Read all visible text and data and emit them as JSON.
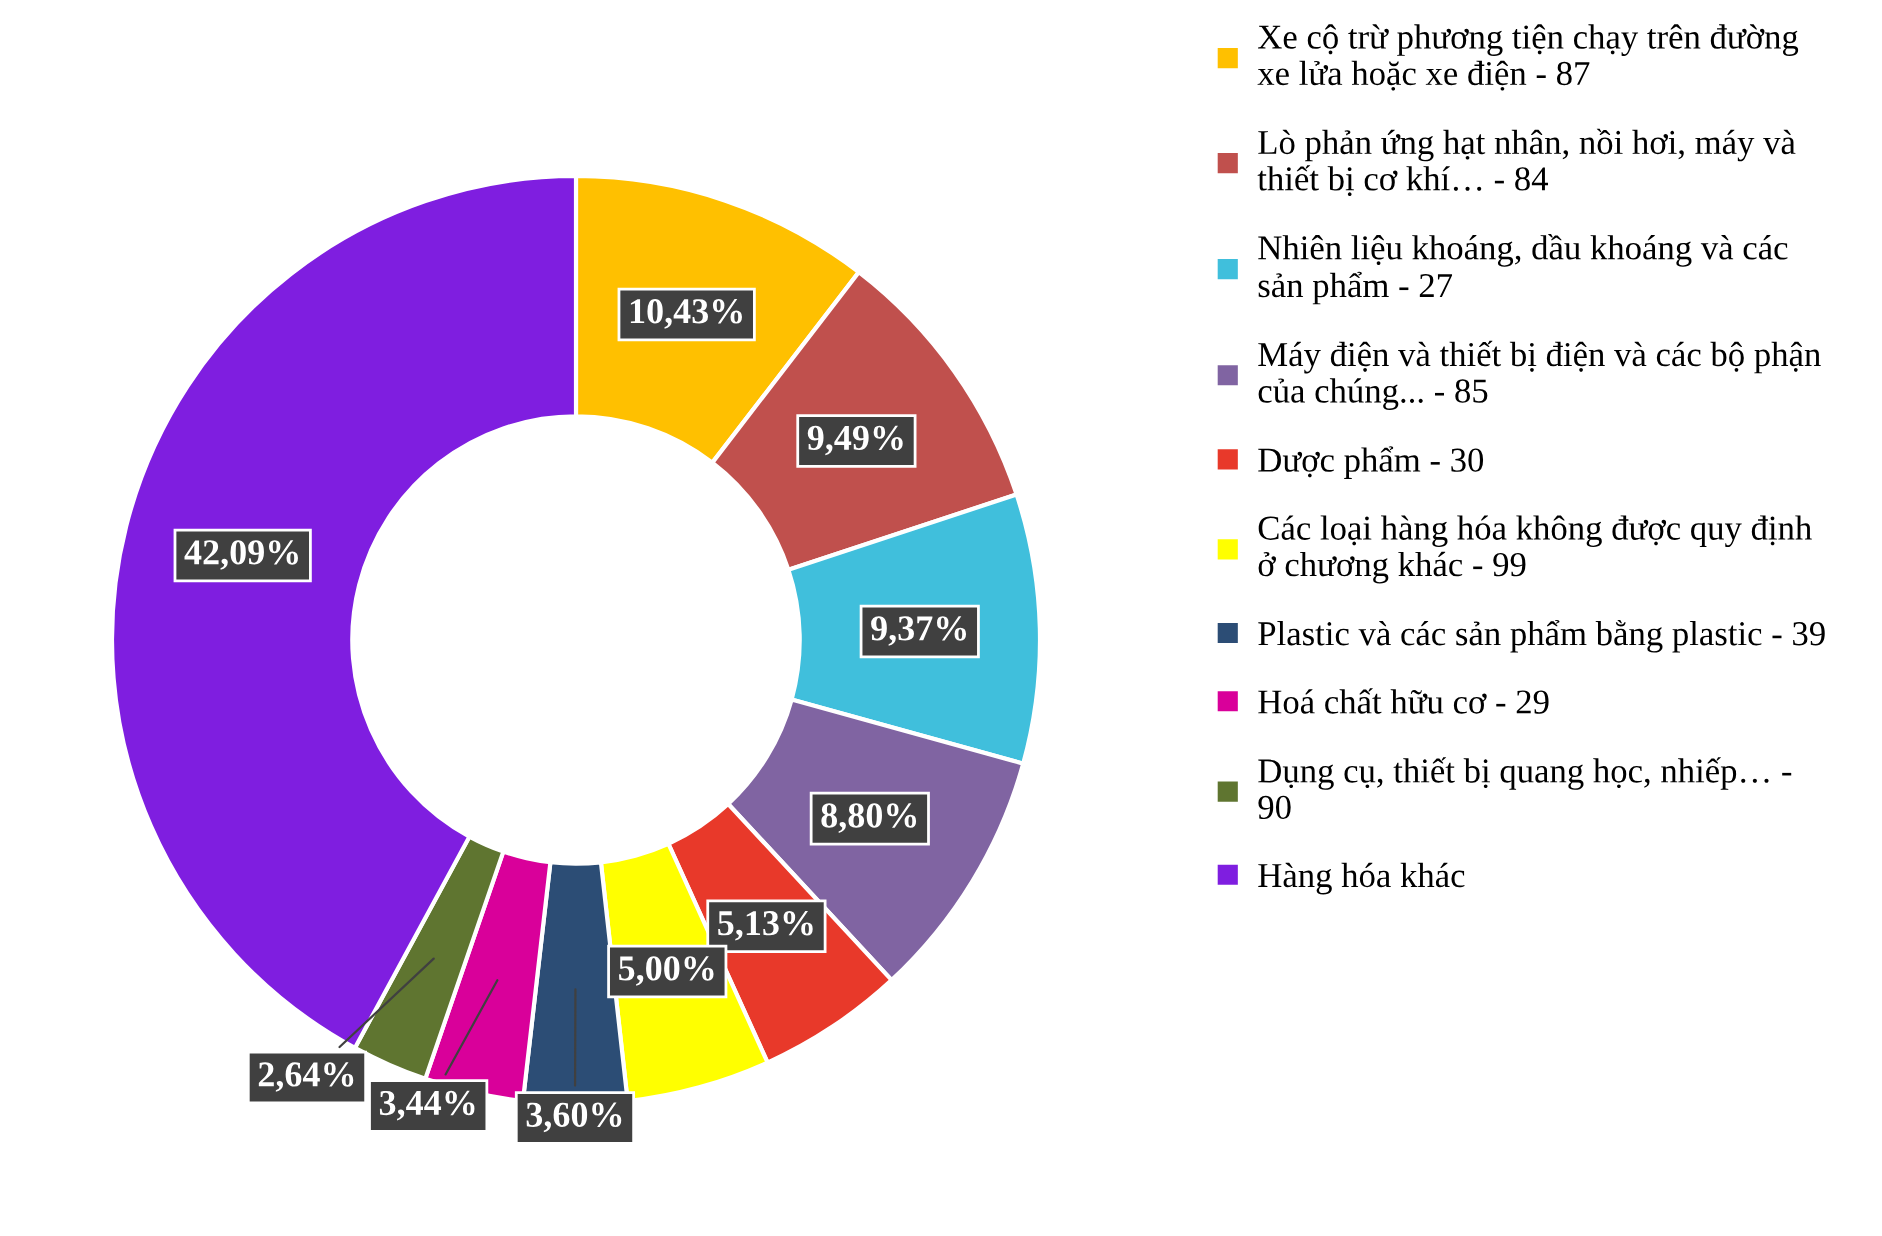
{
  "chart_data": {
    "type": "donut",
    "categories": [
      "Xe cộ trừ phương tiện chạy trên đường\nxe lửa hoặc xe điện - 87",
      "Lò phản ứng hạt nhân, nồi hơi, máy và\nthiết bị cơ khí… - 84",
      "Nhiên liệu khoáng, dầu khoáng và các\nsản phẩm - 27",
      "Máy điện và thiết bị điện và các bộ phận\ncủa chúng... - 85",
      "Dược phẩm - 30",
      "Các loại hàng hóa không được quy định\nở chương khác - 99",
      "Plastic và các sản phẩm bằng plastic - 39",
      "Hoá chất hữu cơ - 29",
      "Dụng cụ, thiết bị quang học, nhiếp… -\n90",
      "Hàng hóa khác"
    ],
    "values": [
      10.43,
      9.49,
      9.37,
      8.8,
      5.13,
      5.0,
      3.6,
      3.44,
      2.64,
      42.09
    ],
    "colors": [
      "#ffc000",
      "#c0504d",
      "#40bfdc",
      "#8064a2",
      "#e8392a",
      "#ffff00",
      "#2c4d75",
      "#d9009a",
      "#5f7530",
      "#7f1ee0"
    ],
    "value_labels": [
      "10,43%",
      "9,49%",
      "9,37%",
      "8,80%",
      "5,13%",
      "5,00%",
      "3,60%",
      "3,44%",
      "2,64%",
      "42,09%"
    ],
    "legend": "right"
  }
}
